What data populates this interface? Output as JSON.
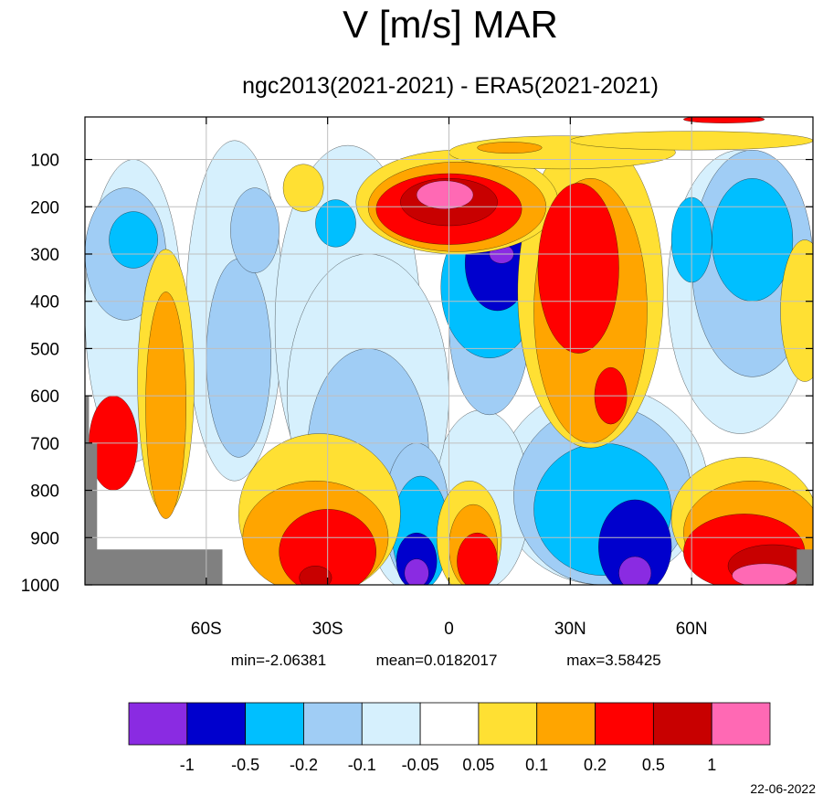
{
  "chart_data": {
    "type": "heatmap",
    "title": "V [m/s] MAR",
    "subtitle": "ngc2013(2021-2021) - ERA5(2021-2021)",
    "x_ticks": [
      {
        "lat": -60,
        "label": "60S"
      },
      {
        "lat": -30,
        "label": "30S"
      },
      {
        "lat": 0,
        "label": "0"
      },
      {
        "lat": 30,
        "label": "30N"
      },
      {
        "lat": 60,
        "label": "60N"
      }
    ],
    "y_ticks": [
      100,
      200,
      300,
      400,
      500,
      600,
      700,
      800,
      900,
      1000
    ],
    "xlim": [
      -90,
      90
    ],
    "ylim_hpa": [
      10,
      1000
    ],
    "stats": {
      "min": "min=-2.06381",
      "mean": "mean=0.0182017",
      "max": "max=3.58425"
    },
    "levels": [
      "-1",
      "-0.5",
      "-0.2",
      "-0.1",
      "-0.05",
      "0.05",
      "0.1",
      "0.2",
      "0.5",
      "1"
    ],
    "colors": [
      "#8a2be2",
      "#0000cd",
      "#00bfff",
      "#a0cdf5",
      "#d6f0fd",
      "#ffffff",
      "#ffe033",
      "#ffa500",
      "#ff0000",
      "#c80000",
      "#ff69b4"
    ],
    "missing_color": "#808080",
    "date": "22-06-2022"
  }
}
